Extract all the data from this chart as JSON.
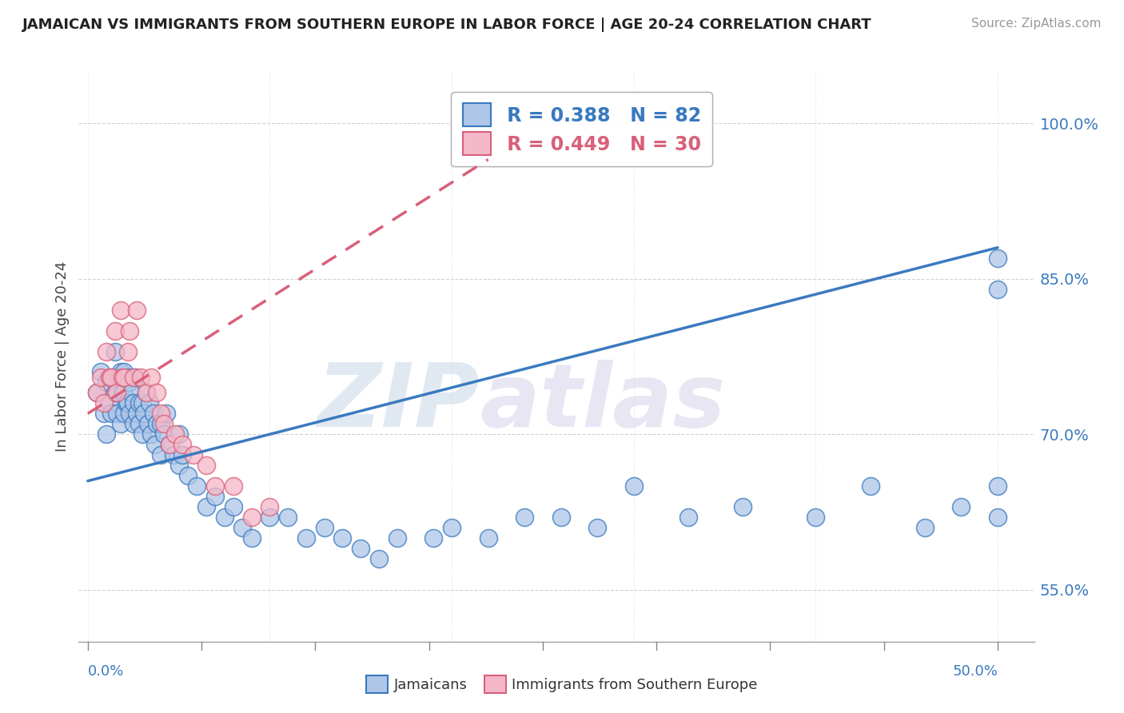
{
  "title": "JAMAICAN VS IMMIGRANTS FROM SOUTHERN EUROPE IN LABOR FORCE | AGE 20-24 CORRELATION CHART",
  "source": "Source: ZipAtlas.com",
  "ylabel": "In Labor Force | Age 20-24",
  "ymin": 0.5,
  "ymax": 1.05,
  "xmin": -0.005,
  "xmax": 0.52,
  "blue_R": 0.388,
  "blue_N": 82,
  "pink_R": 0.449,
  "pink_N": 30,
  "blue_color": "#aec6e8",
  "pink_color": "#f5b8c8",
  "blue_line_color": "#3a7abf",
  "pink_line_color": "#d9607a",
  "ytick_positions": [
    0.55,
    0.7,
    0.85,
    1.0
  ],
  "ytick_labels": [
    "55.0%",
    "70.0%",
    "85.0%",
    "100.0%"
  ],
  "watermark_zip": "ZIP",
  "watermark_atlas": "atlas",
  "blue_scatter_x": [
    0.005,
    0.007,
    0.009,
    0.01,
    0.01,
    0.012,
    0.013,
    0.014,
    0.015,
    0.015,
    0.016,
    0.017,
    0.018,
    0.018,
    0.019,
    0.02,
    0.02,
    0.02,
    0.021,
    0.022,
    0.022,
    0.023,
    0.023,
    0.024,
    0.025,
    0.025,
    0.026,
    0.027,
    0.028,
    0.028,
    0.03,
    0.03,
    0.031,
    0.032,
    0.033,
    0.034,
    0.035,
    0.036,
    0.037,
    0.038,
    0.04,
    0.04,
    0.042,
    0.043,
    0.045,
    0.047,
    0.05,
    0.05,
    0.052,
    0.055,
    0.06,
    0.065,
    0.07,
    0.075,
    0.08,
    0.085,
    0.09,
    0.1,
    0.11,
    0.12,
    0.13,
    0.14,
    0.15,
    0.16,
    0.17,
    0.19,
    0.2,
    0.22,
    0.24,
    0.26,
    0.28,
    0.3,
    0.33,
    0.36,
    0.4,
    0.43,
    0.46,
    0.48,
    0.5,
    0.5,
    0.5,
    0.5
  ],
  "blue_scatter_y": [
    0.74,
    0.76,
    0.72,
    0.7,
    0.75,
    0.73,
    0.72,
    0.755,
    0.74,
    0.78,
    0.72,
    0.755,
    0.76,
    0.71,
    0.74,
    0.72,
    0.76,
    0.74,
    0.73,
    0.73,
    0.755,
    0.75,
    0.72,
    0.74,
    0.71,
    0.73,
    0.755,
    0.72,
    0.73,
    0.71,
    0.7,
    0.73,
    0.72,
    0.74,
    0.71,
    0.73,
    0.7,
    0.72,
    0.69,
    0.71,
    0.68,
    0.71,
    0.7,
    0.72,
    0.69,
    0.68,
    0.67,
    0.7,
    0.68,
    0.66,
    0.65,
    0.63,
    0.64,
    0.62,
    0.63,
    0.61,
    0.6,
    0.62,
    0.62,
    0.6,
    0.61,
    0.6,
    0.59,
    0.58,
    0.6,
    0.6,
    0.61,
    0.6,
    0.62,
    0.62,
    0.61,
    0.65,
    0.62,
    0.63,
    0.62,
    0.65,
    0.61,
    0.63,
    0.65,
    0.62,
    0.84,
    0.87
  ],
  "pink_scatter_x": [
    0.005,
    0.007,
    0.009,
    0.01,
    0.012,
    0.013,
    0.015,
    0.016,
    0.018,
    0.019,
    0.02,
    0.022,
    0.023,
    0.025,
    0.027,
    0.029,
    0.032,
    0.035,
    0.038,
    0.04,
    0.042,
    0.045,
    0.048,
    0.052,
    0.058,
    0.065,
    0.07,
    0.08,
    0.09,
    0.1
  ],
  "pink_scatter_y": [
    0.74,
    0.755,
    0.73,
    0.78,
    0.755,
    0.755,
    0.8,
    0.74,
    0.82,
    0.755,
    0.755,
    0.78,
    0.8,
    0.755,
    0.82,
    0.755,
    0.74,
    0.755,
    0.74,
    0.72,
    0.71,
    0.69,
    0.7,
    0.69,
    0.68,
    0.67,
    0.65,
    0.65,
    0.62,
    0.63
  ],
  "blue_trend_x0": 0.0,
  "blue_trend_x1": 0.5,
  "blue_trend_y0": 0.655,
  "blue_trend_y1": 0.88,
  "pink_trend_x0": 0.0,
  "pink_trend_x1": 0.22,
  "pink_trend_y0": 0.72,
  "pink_trend_y1": 0.965
}
